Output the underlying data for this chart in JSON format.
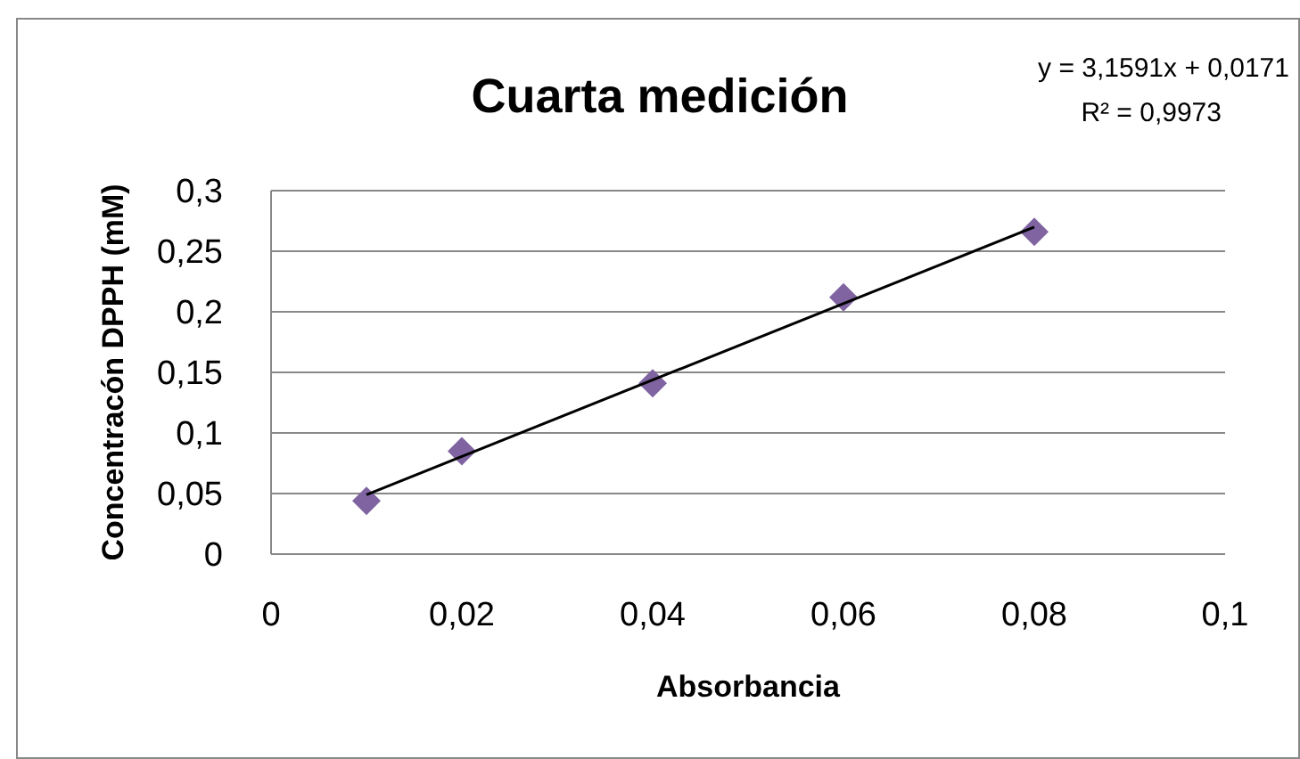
{
  "chart_data": {
    "type": "scatter",
    "title": "Cuarta medición",
    "xlabel": "Absorbancia",
    "ylabel": "Concentracón DPPH (mM)",
    "annotations": [
      "y = 3,1591x + 0,0171",
      "R² = 0,9973"
    ],
    "x": [
      0.01,
      0.02,
      0.04,
      0.06,
      0.08
    ],
    "series": [
      {
        "type": "scatter",
        "color": "#8064a2",
        "values": [
          0.044,
          0.085,
          0.141,
          0.212,
          0.266
        ],
        "marker": "diamond"
      },
      {
        "type": "line",
        "color": "#000000",
        "x": [
          0.01,
          0.08
        ],
        "values": [
          0.049,
          0.27
        ],
        "marker": "none",
        "line_style": "solid"
      }
    ],
    "xlim": [
      0,
      0.1
    ],
    "xticks": [
      {
        "value": 0,
        "label": "0"
      },
      {
        "value": 0.02,
        "label": "0,02"
      },
      {
        "value": 0.04,
        "label": "0,04"
      },
      {
        "value": 0.06,
        "label": "0,06"
      },
      {
        "value": 0.08,
        "label": "0,08"
      },
      {
        "value": 0.1,
        "label": "0,1"
      }
    ],
    "ylim": [
      0,
      0.3
    ],
    "yticks": [
      {
        "value": 0,
        "label": "0"
      },
      {
        "value": 0.05,
        "label": "0,05"
      },
      {
        "value": 0.1,
        "label": "0,1"
      },
      {
        "value": 0.15,
        "label": "0,15"
      },
      {
        "value": 0.2,
        "label": "0,2"
      },
      {
        "value": 0.25,
        "label": "0,25"
      },
      {
        "value": 0.3,
        "label": "0,3"
      }
    ],
    "grid": "y"
  }
}
